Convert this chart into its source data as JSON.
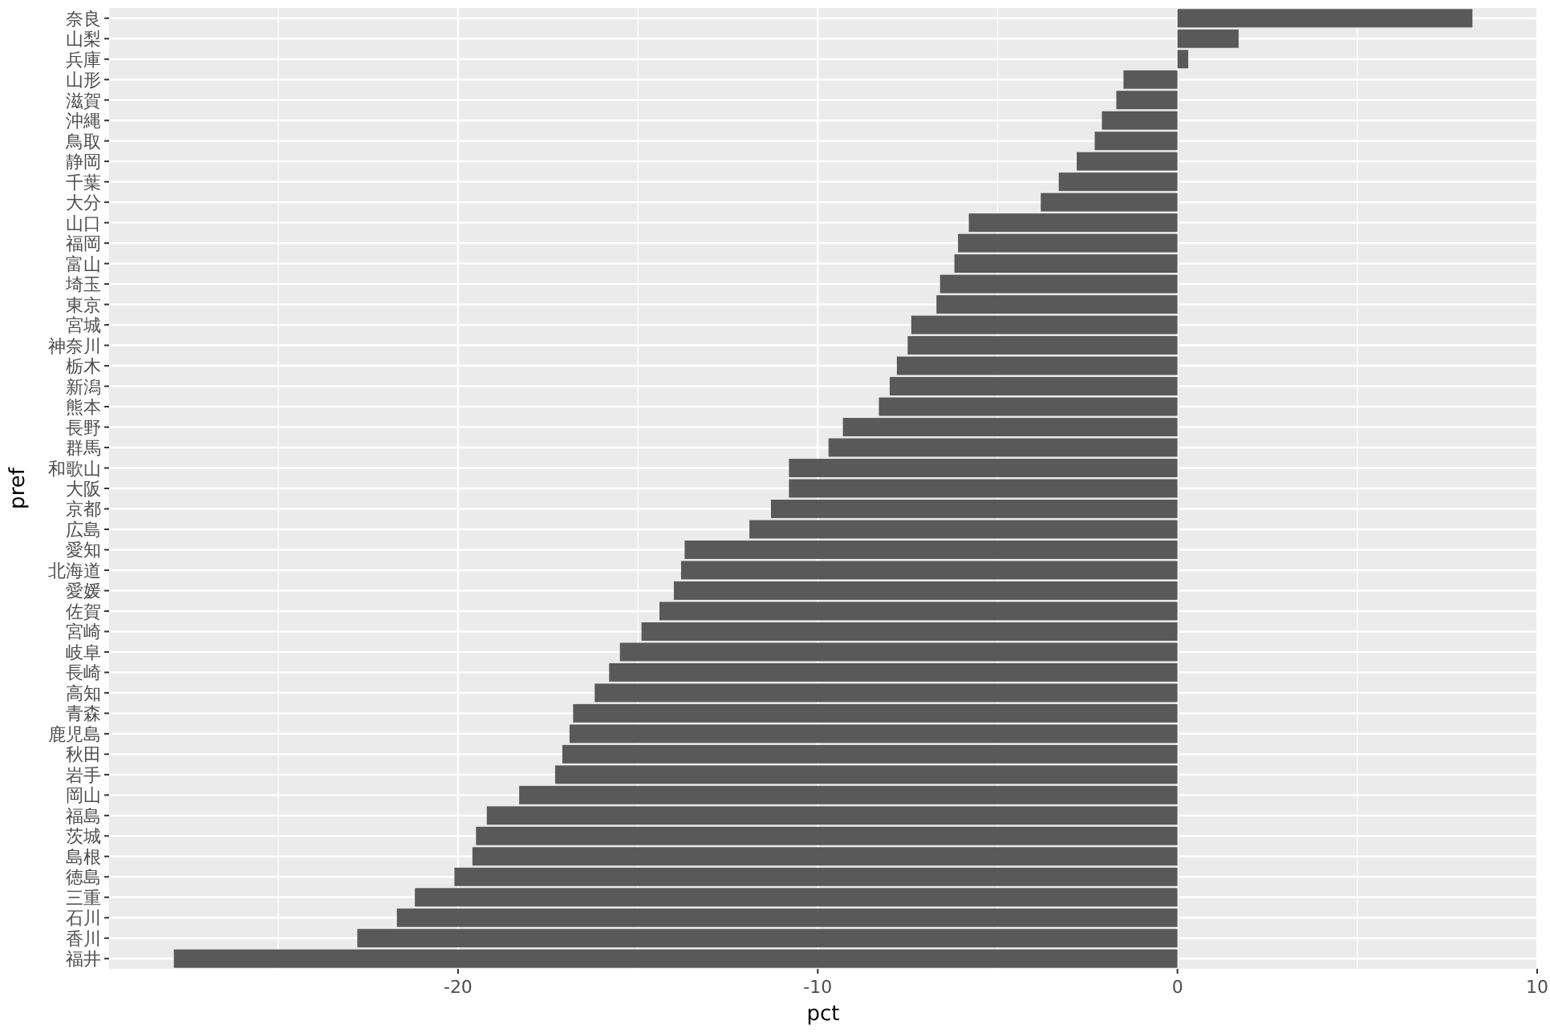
{
  "chart_data": {
    "type": "bar",
    "orientation": "horizontal",
    "xlabel": "pct",
    "ylabel": "pref",
    "categories": [
      "奈良",
      "山梨",
      "兵庫",
      "山形",
      "滋賀",
      "沖縄",
      "鳥取",
      "静岡",
      "千葉",
      "大分",
      "山口",
      "福岡",
      "富山",
      "埼玉",
      "東京",
      "宮城",
      "神奈川",
      "栃木",
      "新潟",
      "熊本",
      "長野",
      "群馬",
      "和歌山",
      "大阪",
      "京都",
      "広島",
      "愛知",
      "北海道",
      "愛媛",
      "佐賀",
      "宮崎",
      "岐阜",
      "長崎",
      "高知",
      "青森",
      "鹿児島",
      "秋田",
      "岩手",
      "岡山",
      "福島",
      "茨城",
      "島根",
      "徳島",
      "三重",
      "石川",
      "香川",
      "福井"
    ],
    "values": [
      8.2,
      1.7,
      0.3,
      -1.5,
      -1.7,
      -2.1,
      -2.3,
      -2.8,
      -3.3,
      -3.8,
      -5.8,
      -6.1,
      -6.2,
      -6.6,
      -6.7,
      -7.4,
      -7.5,
      -7.8,
      -8.0,
      -8.3,
      -9.3,
      -9.7,
      -10.8,
      -10.8,
      -11.3,
      -11.9,
      -13.7,
      -13.8,
      -14.0,
      -14.4,
      -14.9,
      -15.5,
      -15.8,
      -16.2,
      -16.8,
      -16.9,
      -17.1,
      -17.3,
      -18.3,
      -19.2,
      -19.5,
      -19.6,
      -20.1,
      -21.2,
      -21.7,
      -22.8,
      -27.9
    ],
    "color": "#595959",
    "xlim": [
      -29.7,
      10.0
    ],
    "xticks": [
      -20,
      -10,
      0,
      10
    ],
    "grid": true
  }
}
